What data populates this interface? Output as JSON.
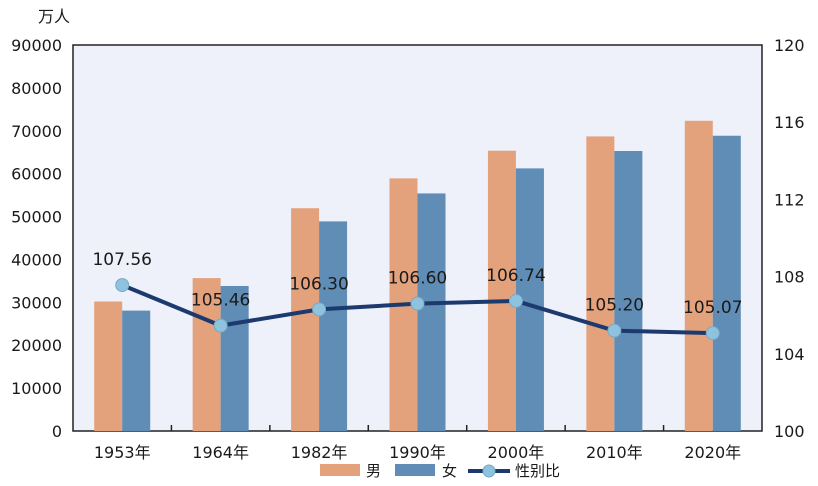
{
  "chart_data": {
    "type": "bar",
    "title": "",
    "ylabel": "万人",
    "categories": [
      "1953年",
      "1964年",
      "1982年",
      "1990年",
      "2000年",
      "2010年",
      "2020年"
    ],
    "series": [
      {
        "name": "男",
        "type": "bar",
        "axis": "left",
        "color": "#e4a27c",
        "values": [
          30190,
          35652,
          51944,
          58904,
          65355,
          68685,
          72334
        ]
      },
      {
        "name": "女",
        "type": "bar",
        "axis": "left",
        "color": "#5f8db5",
        "values": [
          28070,
          33806,
          48874,
          55391,
          61228,
          65287,
          68844
        ]
      },
      {
        "name": "性别比",
        "type": "line",
        "axis": "right",
        "color": "#1c3a6e",
        "marker_color": "#8ec3e0",
        "values": [
          107.56,
          105.46,
          106.3,
          106.6,
          106.74,
          105.2,
          105.07
        ],
        "labels": [
          "107.56",
          "105.46",
          "106.30",
          "106.60",
          "106.74",
          "105.20",
          "105.07"
        ]
      }
    ],
    "ylim": [
      0,
      90000
    ],
    "yticks": [
      "0",
      "10000",
      "20000",
      "30000",
      "40000",
      "50000",
      "60000",
      "70000",
      "80000",
      "90000"
    ],
    "y2lim": [
      100,
      120
    ],
    "y2ticks": [
      "100",
      "104",
      "108",
      "112",
      "116",
      "120"
    ],
    "plot_background": "#eef1fa",
    "grid": false,
    "legend_position": "bottom"
  }
}
